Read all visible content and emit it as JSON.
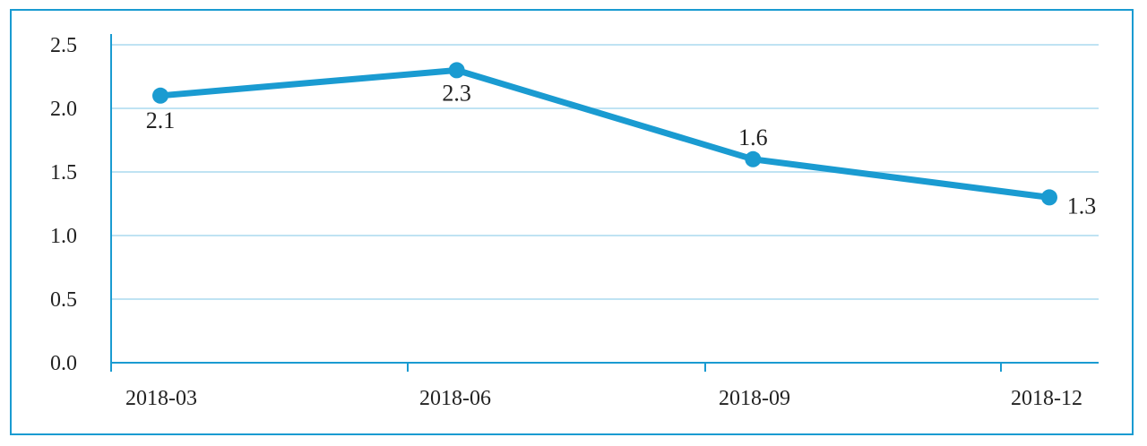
{
  "chart_data": {
    "type": "line",
    "categories": [
      "2018-03",
      "2018-06",
      "2018-09",
      "2018-12"
    ],
    "series": [
      {
        "values": [
          2.1,
          2.3,
          1.6,
          1.3
        ]
      }
    ],
    "data_labels": [
      "2.1",
      "2.3",
      "1.6",
      "1.3"
    ],
    "y_ticks": [
      "0.0",
      "0.5",
      "1.0",
      "1.5",
      "2.0",
      "2.5"
    ],
    "ylim": [
      0,
      2.5
    ],
    "grid": true,
    "legend": "none",
    "colors": {
      "line": "#1a9bd1",
      "grid": "#bfe3f3",
      "axis": "#1a9bd1",
      "frame": "#1a9bd1"
    }
  }
}
